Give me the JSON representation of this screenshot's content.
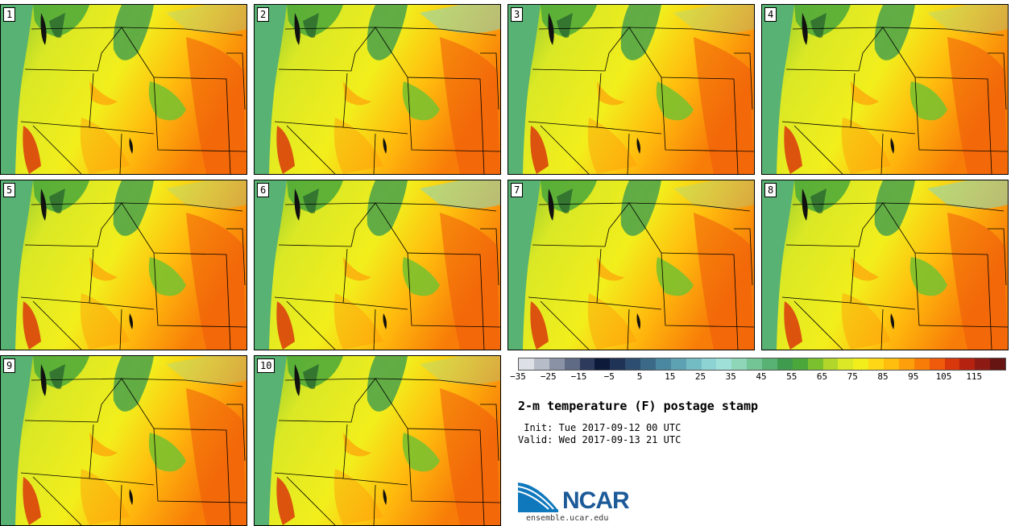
{
  "panels": [
    {
      "label": "1"
    },
    {
      "label": "2"
    },
    {
      "label": "3"
    },
    {
      "label": "4"
    },
    {
      "label": "5"
    },
    {
      "label": "6"
    },
    {
      "label": "7"
    },
    {
      "label": "8"
    },
    {
      "label": "9"
    },
    {
      "label": "10"
    }
  ],
  "colorbar": {
    "colors": [
      "#dde0e6",
      "#b6bcc8",
      "#8a93a6",
      "#5f6b84",
      "#2d3a5c",
      "#0d1a3a",
      "#1f3356",
      "#2d4e70",
      "#3a6a88",
      "#4a87a0",
      "#5da2b2",
      "#74bcc4",
      "#8ed3d3",
      "#9fe0d8",
      "#8fd6b8",
      "#74c596",
      "#58b273",
      "#3f9c4e",
      "#4aa83a",
      "#7bc12e",
      "#b2d72a",
      "#dae825",
      "#f2ee1c",
      "#fed816",
      "#ffbe0e",
      "#fd9f0a",
      "#f87d08",
      "#ef5a0b",
      "#d9380c",
      "#b52310",
      "#8e1a14",
      "#661512"
    ],
    "tick_labels": [
      "−35",
      "−25",
      "−15",
      "−5",
      "5",
      "15",
      "25",
      "35",
      "45",
      "55",
      "65",
      "75",
      "85",
      "95",
      "105",
      "115"
    ]
  },
  "title": "2-m temperature (F) postage stamp",
  "init_line": " Init: Tue 2017-09-12 00 UTC",
  "valid_line": "Valid: Wed 2017-09-13 21 UTC",
  "logo_text": "NCAR",
  "url": "ensemble.ucar.edu"
}
